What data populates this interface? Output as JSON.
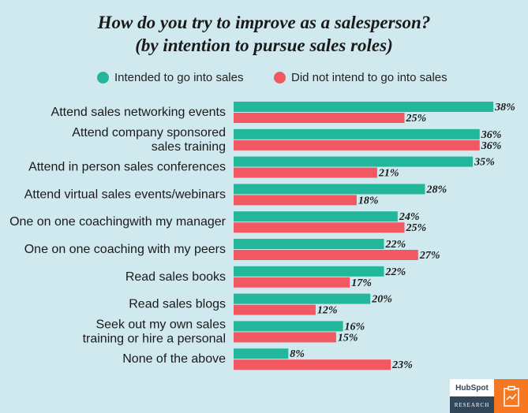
{
  "title_line1": "How do you try to improve as a salesperson?",
  "title_line2": "(by intention to pursue sales roles)",
  "colors": {
    "background": "#cfe9ee",
    "series1": "#22b69a",
    "series2": "#f25862"
  },
  "logo": {
    "brand": "HubSpot",
    "tag": "RESEARCH"
  },
  "chart_data": {
    "type": "bar",
    "orientation": "horizontal",
    "series": [
      {
        "name": "Intended to go into sales",
        "values": [
          38,
          36,
          35,
          28,
          24,
          22,
          22,
          20,
          16,
          8
        ]
      },
      {
        "name": "Did not intend to go into sales",
        "values": [
          25,
          36,
          21,
          18,
          25,
          27,
          17,
          12,
          15,
          23
        ]
      }
    ],
    "categories": [
      [
        "Attend sales networking events"
      ],
      [
        "Attend company sponsored",
        "sales training"
      ],
      [
        "Attend in person sales conferences"
      ],
      [
        "Attend virtual sales events/webinars"
      ],
      [
        "One on one coachingwith my manager"
      ],
      [
        "One on one coaching with my peers"
      ],
      [
        "Read sales books"
      ],
      [
        "Read sales blogs"
      ],
      [
        "Seek out my own sales",
        "training or hire a personal"
      ],
      [
        "None of the above"
      ]
    ],
    "value_format": "%",
    "legend_position": "top"
  }
}
